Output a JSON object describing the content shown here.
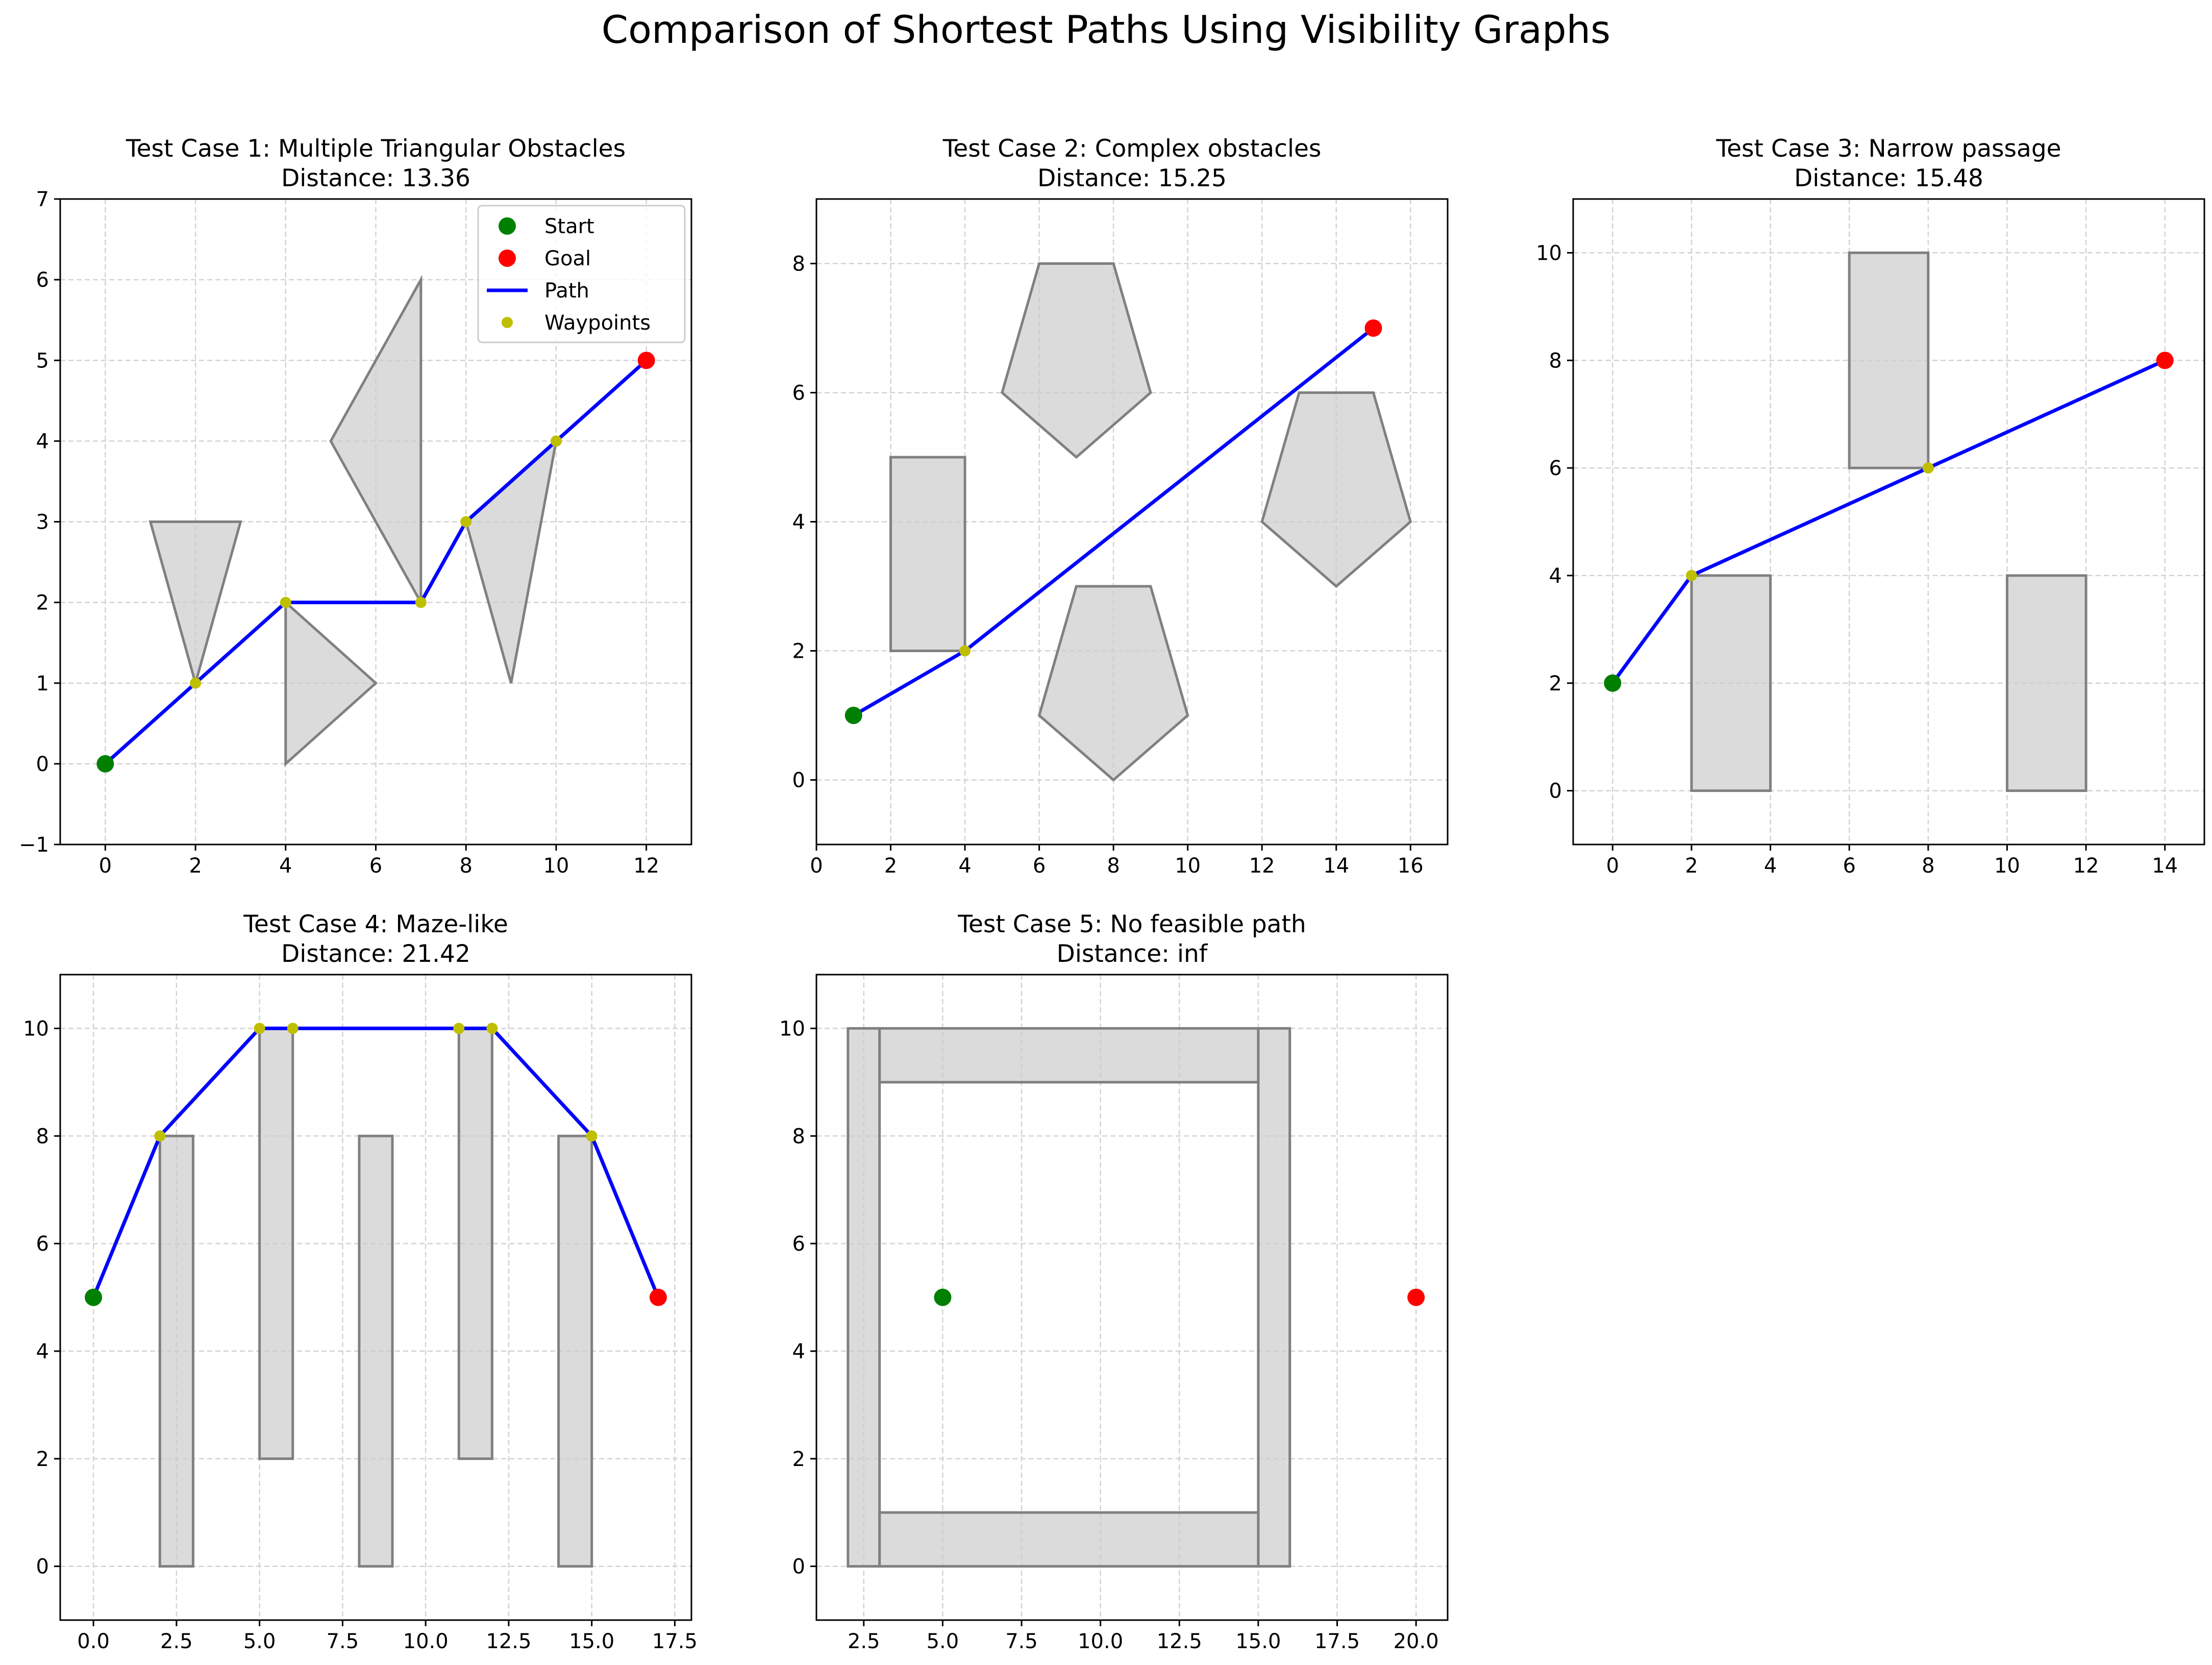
{
  "suptitle": "Comparison of Shortest Paths Using Visibility Graphs",
  "legend": {
    "placement": "top-right of Test Case 1",
    "entries": [
      {
        "label": "Start",
        "kind": "marker",
        "color": "#008000"
      },
      {
        "label": "Goal",
        "kind": "marker",
        "color": "#ff0000"
      },
      {
        "label": "Path",
        "kind": "line",
        "color": "#0000ff"
      },
      {
        "label": "Waypoints",
        "kind": "marker",
        "color": "#bfbf00"
      }
    ]
  },
  "colors": {
    "obstacle_fill": "#cccccc",
    "obstacle_edge": "#808080",
    "path": "#0000ff",
    "start": "#008000",
    "goal": "#ff0000",
    "waypoint": "#bfbf00",
    "grid": "#d3d3d3"
  },
  "chart_data": [
    {
      "type": "line",
      "title": "Test Case 1: Multiple Triangular Obstacles",
      "subtitle": "Distance: 13.36",
      "xlim": [
        -1,
        13
      ],
      "ylim": [
        -1,
        7
      ],
      "xticks": [
        0,
        2,
        4,
        6,
        8,
        10,
        12
      ],
      "xtick_labels": [
        "0",
        "2",
        "4",
        "6",
        "8",
        "10",
        "12"
      ],
      "yticks": [
        -1,
        0,
        1,
        2,
        3,
        4,
        5,
        6,
        7
      ],
      "ytick_labels": [
        "−1",
        "0",
        "1",
        "2",
        "3",
        "4",
        "5",
        "6",
        "7"
      ],
      "grid": true,
      "obstacles": [
        [
          [
            1,
            3
          ],
          [
            3,
            3
          ],
          [
            2,
            1
          ]
        ],
        [
          [
            4,
            0
          ],
          [
            6,
            1
          ],
          [
            4,
            2
          ]
        ],
        [
          [
            5,
            4
          ],
          [
            7,
            6
          ],
          [
            7,
            2
          ]
        ],
        [
          [
            8,
            3
          ],
          [
            10,
            4
          ],
          [
            9,
            1
          ]
        ]
      ],
      "start": [
        0,
        0
      ],
      "goal": [
        12,
        5
      ],
      "path": [
        [
          0,
          0
        ],
        [
          2,
          1
        ],
        [
          4,
          2
        ],
        [
          7,
          2
        ],
        [
          8,
          3
        ],
        [
          10,
          4
        ],
        [
          12,
          5
        ]
      ],
      "waypoints": [
        [
          2,
          1
        ],
        [
          4,
          2
        ],
        [
          7,
          2
        ],
        [
          8,
          3
        ],
        [
          10,
          4
        ]
      ]
    },
    {
      "type": "line",
      "title": "Test Case 2: Complex obstacles",
      "subtitle": "Distance: 15.25",
      "xlim": [
        0,
        17
      ],
      "ylim": [
        -1,
        9
      ],
      "xticks": [
        0,
        2,
        4,
        6,
        8,
        10,
        12,
        14,
        16
      ],
      "xtick_labels": [
        "0",
        "2",
        "4",
        "6",
        "8",
        "10",
        "12",
        "14",
        "16"
      ],
      "yticks": [
        0,
        2,
        4,
        6,
        8
      ],
      "ytick_labels": [
        "0",
        "2",
        "4",
        "6",
        "8"
      ],
      "grid": true,
      "obstacles": [
        [
          [
            2,
            2
          ],
          [
            4,
            2
          ],
          [
            4,
            5
          ],
          [
            2,
            5
          ]
        ],
        [
          [
            6,
            8
          ],
          [
            8,
            8
          ],
          [
            9,
            6
          ],
          [
            7,
            5
          ],
          [
            5,
            6
          ]
        ],
        [
          [
            7,
            3
          ],
          [
            9,
            3
          ],
          [
            10,
            1
          ],
          [
            8,
            0
          ],
          [
            6,
            1
          ]
        ],
        [
          [
            13,
            6
          ],
          [
            15,
            6
          ],
          [
            16,
            4
          ],
          [
            14,
            3
          ],
          [
            12,
            4
          ]
        ]
      ],
      "start": [
        1,
        1
      ],
      "goal": [
        15,
        7
      ],
      "path": [
        [
          1,
          1
        ],
        [
          4,
          2
        ],
        [
          15,
          7
        ]
      ],
      "waypoints": [
        [
          4,
          2
        ]
      ]
    },
    {
      "type": "line",
      "title": "Test Case 3: Narrow passage",
      "subtitle": "Distance: 15.48",
      "xlim": [
        -1,
        15
      ],
      "ylim": [
        -1,
        11
      ],
      "xticks": [
        0,
        2,
        4,
        6,
        8,
        10,
        12,
        14
      ],
      "xtick_labels": [
        "0",
        "2",
        "4",
        "6",
        "8",
        "10",
        "12",
        "14"
      ],
      "yticks": [
        0,
        2,
        4,
        6,
        8,
        10
      ],
      "ytick_labels": [
        "0",
        "2",
        "4",
        "6",
        "8",
        "10"
      ],
      "grid": true,
      "obstacles": [
        [
          [
            2,
            0
          ],
          [
            4,
            0
          ],
          [
            4,
            4
          ],
          [
            2,
            4
          ]
        ],
        [
          [
            6,
            6
          ],
          [
            8,
            6
          ],
          [
            8,
            10
          ],
          [
            6,
            10
          ]
        ],
        [
          [
            10,
            0
          ],
          [
            12,
            0
          ],
          [
            12,
            4
          ],
          [
            10,
            4
          ]
        ]
      ],
      "start": [
        0,
        2
      ],
      "goal": [
        14,
        8
      ],
      "path": [
        [
          0,
          2
        ],
        [
          2,
          4
        ],
        [
          8,
          6
        ],
        [
          14,
          8
        ]
      ],
      "waypoints": [
        [
          2,
          4
        ],
        [
          8,
          6
        ]
      ]
    },
    {
      "type": "line",
      "title": "Test Case 4: Maze-like",
      "subtitle": "Distance: 21.42",
      "xlim": [
        -1,
        18
      ],
      "ylim": [
        -1,
        11
      ],
      "xticks": [
        0,
        2.5,
        5,
        7.5,
        10,
        12.5,
        15,
        17.5
      ],
      "xtick_labels": [
        "0.0",
        "2.5",
        "5.0",
        "7.5",
        "10.0",
        "12.5",
        "15.0",
        "17.5"
      ],
      "yticks": [
        0,
        2,
        4,
        6,
        8,
        10
      ],
      "ytick_labels": [
        "0",
        "2",
        "4",
        "6",
        "8",
        "10"
      ],
      "grid": true,
      "obstacles": [
        [
          [
            2,
            0
          ],
          [
            3,
            0
          ],
          [
            3,
            8
          ],
          [
            2,
            8
          ]
        ],
        [
          [
            5,
            2
          ],
          [
            6,
            2
          ],
          [
            6,
            10
          ],
          [
            5,
            10
          ]
        ],
        [
          [
            8,
            0
          ],
          [
            9,
            0
          ],
          [
            9,
            8
          ],
          [
            8,
            8
          ]
        ],
        [
          [
            11,
            2
          ],
          [
            12,
            2
          ],
          [
            12,
            10
          ],
          [
            11,
            10
          ]
        ],
        [
          [
            14,
            0
          ],
          [
            15,
            0
          ],
          [
            15,
            8
          ],
          [
            14,
            8
          ]
        ]
      ],
      "start": [
        0,
        5
      ],
      "goal": [
        17,
        5
      ],
      "path": [
        [
          0,
          5
        ],
        [
          2,
          8
        ],
        [
          5,
          10
        ],
        [
          6,
          10
        ],
        [
          11,
          10
        ],
        [
          12,
          10
        ],
        [
          15,
          8
        ],
        [
          17,
          5
        ]
      ],
      "waypoints": [
        [
          2,
          8
        ],
        [
          5,
          10
        ],
        [
          6,
          10
        ],
        [
          11,
          10
        ],
        [
          12,
          10
        ],
        [
          15,
          8
        ]
      ]
    },
    {
      "type": "line",
      "title": "Test Case 5: No feasible path",
      "subtitle": "Distance: inf",
      "xlim": [
        1,
        21
      ],
      "ylim": [
        -1,
        11
      ],
      "xticks": [
        2.5,
        5,
        7.5,
        10,
        12.5,
        15,
        17.5,
        20
      ],
      "xtick_labels": [
        "2.5",
        "5.0",
        "7.5",
        "10.0",
        "12.5",
        "15.0",
        "17.5",
        "20.0"
      ],
      "yticks": [
        0,
        2,
        4,
        6,
        8,
        10
      ],
      "ytick_labels": [
        "0",
        "2",
        "4",
        "6",
        "8",
        "10"
      ],
      "grid": true,
      "obstacles": [
        [
          [
            2,
            0
          ],
          [
            3,
            0
          ],
          [
            3,
            10
          ],
          [
            2,
            10
          ]
        ],
        [
          [
            15,
            0
          ],
          [
            16,
            0
          ],
          [
            16,
            10
          ],
          [
            15,
            10
          ]
        ],
        [
          [
            3,
            9
          ],
          [
            15,
            9
          ],
          [
            15,
            10
          ],
          [
            3,
            10
          ]
        ],
        [
          [
            3,
            0
          ],
          [
            15,
            0
          ],
          [
            15,
            1
          ],
          [
            3,
            1
          ]
        ]
      ],
      "start": [
        5,
        5
      ],
      "goal": [
        20,
        5
      ],
      "path": [],
      "waypoints": []
    }
  ]
}
